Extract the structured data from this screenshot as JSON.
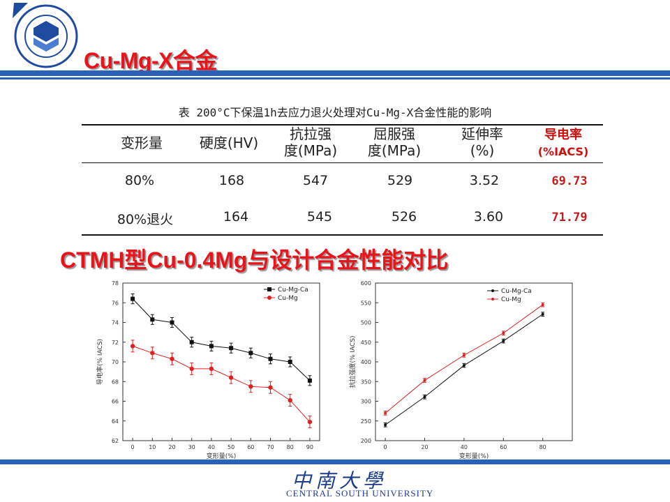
{
  "header": {
    "title": "Cu-Mg-X合金",
    "logo_text": "CENTRAL SOUTH UNIVERSITY"
  },
  "table": {
    "caption": "表 200°C下保温1h去应力退火处理对Cu-Mg-X合金性能的影响",
    "headers": [
      [
        "变形量",
        ""
      ],
      [
        "硬度(HV)",
        ""
      ],
      [
        "抗拉强",
        "度(MPa)"
      ],
      [
        "屈服强",
        "度(MPa)"
      ],
      [
        "延伸率",
        "(%)"
      ],
      [
        "导电率",
        "(%IACS)"
      ]
    ],
    "rows": [
      [
        "80%",
        "168",
        "547",
        "529",
        "3.52",
        "69.73"
      ],
      [
        "80%退火",
        "164",
        "545",
        "526",
        "3.60",
        "71.79"
      ]
    ]
  },
  "subtitle": "CTMH型Cu-0.4Mg与设计合金性能对比",
  "colors": {
    "accent_red": "#e8141b",
    "bar_blue": "#2a62b8",
    "series_black": "#111111",
    "series_red": "#e02020"
  },
  "chart_data": [
    {
      "type": "line",
      "xlabel": "变形量(%)",
      "ylabel": "导电率(% IACS)",
      "x": [
        0,
        10,
        20,
        30,
        40,
        50,
        60,
        70,
        80,
        90
      ],
      "xlim": [
        -5,
        95
      ],
      "ylim": [
        62,
        78
      ],
      "yticks": [
        62,
        64,
        66,
        68,
        70,
        72,
        74,
        76,
        78
      ],
      "xticks": [
        0,
        10,
        20,
        30,
        40,
        50,
        60,
        70,
        80,
        90
      ],
      "legend": "top-right",
      "series": [
        {
          "name": "Cu-Mg-Ca",
          "marker": "square",
          "color": "#111111",
          "values": [
            76.4,
            74.3,
            74.0,
            72.0,
            71.6,
            71.4,
            70.9,
            70.3,
            70.0,
            68.1
          ],
          "error": 0.5
        },
        {
          "name": "Cu-Mg",
          "marker": "circle",
          "color": "#e02020",
          "values": [
            71.6,
            70.9,
            70.3,
            69.3,
            69.3,
            68.4,
            67.5,
            67.4,
            66.1,
            63.9
          ],
          "error": 0.6
        }
      ]
    },
    {
      "type": "line",
      "xlabel": "变形量(%)",
      "ylabel": "抗拉强度(% IACS)",
      "x": [
        0,
        20,
        40,
        60,
        80
      ],
      "xlim": [
        -5,
        95
      ],
      "ylim": [
        200,
        600
      ],
      "yticks": [
        200,
        250,
        300,
        350,
        400,
        450,
        500,
        550,
        600
      ],
      "xticks": [
        0,
        20,
        40,
        60,
        80
      ],
      "legend": "top-left",
      "series": [
        {
          "name": "Cu-Mg-Ca",
          "marker": "dot",
          "color": "#111111",
          "values": [
            240,
            311,
            391,
            453,
            521
          ],
          "error": 5
        },
        {
          "name": "Cu-Mg",
          "marker": "dot",
          "color": "#e02020",
          "values": [
            270,
            353,
            417,
            473,
            545
          ],
          "error": 5
        }
      ]
    }
  ]
}
